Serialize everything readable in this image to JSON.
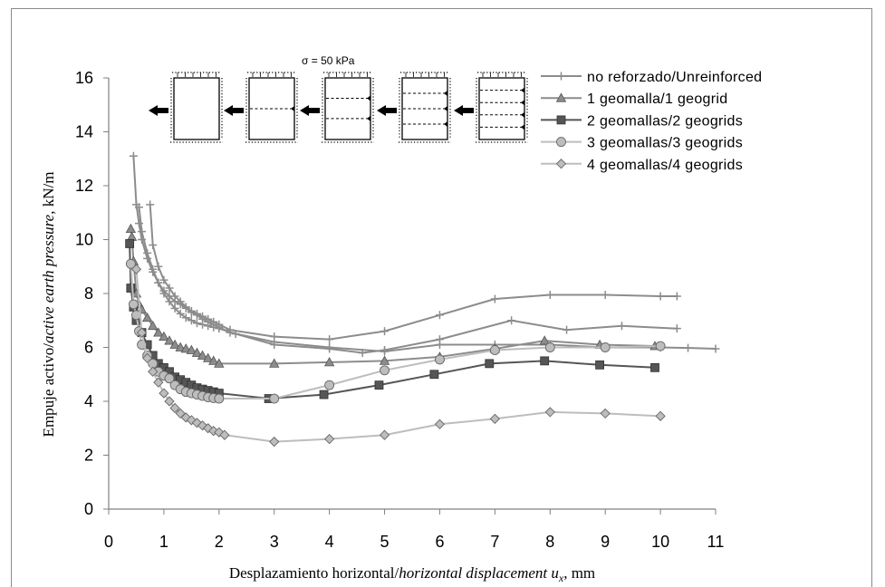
{
  "chart_data": {
    "type": "line",
    "xlabel_prefix": "Desplazamiento horizontal/",
    "xlabel_italic": "horizontal displacement",
    "xlabel_var": "u",
    "xlabel_sub": "x",
    "xlabel_unit": ", mm",
    "ylabel_prefix": "Empuje activo/",
    "ylabel_italic": "active earth pressure",
    "ylabel_unit": ", kN/m",
    "xlim": [
      0,
      11
    ],
    "ylim": [
      0,
      16
    ],
    "xticks": [
      "0",
      "1",
      "2",
      "3",
      "4",
      "5",
      "6",
      "7",
      "8",
      "9",
      "10",
      "11"
    ],
    "yticks": [
      "0",
      "2",
      "4",
      "6",
      "8",
      "10",
      "12",
      "14",
      "16"
    ],
    "grid": false,
    "legend_position": "top-right",
    "series": [
      {
        "name": "no reforzado/Unreinforced",
        "color": "#8c8c8c",
        "marker": "plus",
        "curves": [
          [
            [
              0.45,
              13.1
            ],
            [
              0.5,
              11.3
            ],
            [
              0.55,
              10.6
            ],
            [
              0.6,
              10.0
            ],
            [
              0.7,
              9.3
            ],
            [
              0.8,
              8.8
            ],
            [
              0.9,
              8.4
            ],
            [
              1.0,
              8.1
            ],
            [
              1.1,
              7.9
            ],
            [
              1.2,
              7.7
            ],
            [
              1.3,
              7.6
            ],
            [
              1.4,
              7.45
            ],
            [
              1.5,
              7.35
            ],
            [
              1.6,
              7.25
            ],
            [
              1.7,
              7.15
            ],
            [
              1.8,
              7.05
            ],
            [
              1.9,
              6.95
            ],
            [
              2.0,
              6.85
            ],
            [
              2.2,
              6.65
            ],
            [
              3.0,
              6.4
            ],
            [
              4.0,
              6.3
            ],
            [
              5.0,
              6.6
            ],
            [
              6.0,
              7.2
            ],
            [
              7.0,
              7.8
            ],
            [
              8.0,
              7.95
            ],
            [
              9.0,
              7.95
            ],
            [
              10.0,
              7.9
            ],
            [
              10.3,
              7.9
            ]
          ],
          [
            [
              0.75,
              11.3
            ],
            [
              0.8,
              9.8
            ],
            [
              0.9,
              9.0
            ],
            [
              1.0,
              8.5
            ],
            [
              1.1,
              8.2
            ],
            [
              1.2,
              7.9
            ],
            [
              1.3,
              7.7
            ],
            [
              1.4,
              7.5
            ],
            [
              1.5,
              7.3
            ],
            [
              1.6,
              7.2
            ],
            [
              1.7,
              7.05
            ],
            [
              1.8,
              6.95
            ],
            [
              1.9,
              6.85
            ],
            [
              2.0,
              6.75
            ],
            [
              2.2,
              6.55
            ],
            [
              3.0,
              6.2
            ],
            [
              4.0,
              6.0
            ],
            [
              5.0,
              5.85
            ],
            [
              6.0,
              6.1
            ],
            [
              7.0,
              6.1
            ],
            [
              8.0,
              6.1
            ],
            [
              9.0,
              6.0
            ],
            [
              10.0,
              6.0
            ],
            [
              10.5,
              5.98
            ],
            [
              11.0,
              5.95
            ]
          ],
          [
            [
              0.55,
              11.2
            ],
            [
              0.6,
              10.3
            ],
            [
              0.7,
              9.5
            ],
            [
              0.8,
              8.9
            ],
            [
              0.9,
              8.4
            ],
            [
              1.0,
              8.0
            ],
            [
              1.1,
              7.7
            ],
            [
              1.2,
              7.45
            ],
            [
              1.3,
              7.25
            ],
            [
              1.4,
              7.1
            ],
            [
              1.5,
              7.0
            ],
            [
              1.6,
              6.9
            ],
            [
              1.7,
              6.85
            ],
            [
              1.8,
              6.8
            ],
            [
              1.9,
              6.75
            ],
            [
              2.0,
              6.7
            ],
            [
              2.3,
              6.5
            ],
            [
              3.0,
              6.1
            ],
            [
              4.0,
              5.95
            ],
            [
              4.6,
              5.8
            ],
            [
              5.0,
              5.9
            ],
            [
              6.0,
              6.3
            ],
            [
              7.3,
              7.0
            ],
            [
              8.3,
              6.65
            ],
            [
              9.3,
              6.8
            ],
            [
              10.3,
              6.7
            ]
          ]
        ]
      },
      {
        "name": "1 geomalla/1 geogrid",
        "color": "#8c8c8c",
        "marker": "triangle",
        "curves": [
          [
            [
              0.4,
              10.4
            ],
            [
              0.42,
              10.1
            ],
            [
              0.45,
              9.2
            ],
            [
              0.5,
              8.0
            ],
            [
              0.55,
              7.6
            ],
            [
              0.6,
              7.4
            ],
            [
              0.7,
              7.1
            ],
            [
              0.8,
              6.8
            ],
            [
              0.9,
              6.55
            ],
            [
              1.0,
              6.4
            ],
            [
              1.1,
              6.25
            ],
            [
              1.2,
              6.1
            ],
            [
              1.3,
              6.0
            ],
            [
              1.4,
              5.95
            ],
            [
              1.5,
              5.9
            ],
            [
              1.6,
              5.8
            ],
            [
              1.7,
              5.7
            ],
            [
              1.8,
              5.6
            ],
            [
              1.9,
              5.5
            ],
            [
              2.0,
              5.4
            ],
            [
              3.0,
              5.4
            ],
            [
              4.0,
              5.45
            ],
            [
              5.0,
              5.5
            ],
            [
              6.0,
              5.65
            ],
            [
              7.0,
              5.95
            ],
            [
              7.9,
              6.25
            ],
            [
              8.9,
              6.1
            ],
            [
              9.9,
              6.05
            ]
          ]
        ]
      },
      {
        "name": "2 geomallas/2 geogrids",
        "color": "#555555",
        "marker": "square",
        "curves": [
          [
            [
              0.38,
              9.85
            ],
            [
              0.4,
              8.2
            ],
            [
              0.45,
              7.5
            ],
            [
              0.5,
              7.0
            ],
            [
              0.6,
              6.55
            ],
            [
              0.7,
              6.1
            ],
            [
              0.8,
              5.7
            ],
            [
              0.9,
              5.4
            ],
            [
              1.0,
              5.25
            ],
            [
              1.1,
              5.1
            ],
            [
              1.2,
              4.9
            ],
            [
              1.3,
              4.8
            ],
            [
              1.4,
              4.7
            ],
            [
              1.5,
              4.6
            ],
            [
              1.6,
              4.5
            ],
            [
              1.7,
              4.45
            ],
            [
              1.8,
              4.4
            ],
            [
              1.9,
              4.35
            ],
            [
              2.0,
              4.3
            ],
            [
              2.9,
              4.1
            ],
            [
              3.9,
              4.25
            ],
            [
              4.9,
              4.6
            ],
            [
              5.9,
              5.0
            ],
            [
              6.9,
              5.4
            ],
            [
              7.9,
              5.5
            ],
            [
              8.9,
              5.35
            ],
            [
              9.9,
              5.25
            ]
          ]
        ]
      },
      {
        "name": "3 geomallas/3 geogrids",
        "color": "#bdbdbd",
        "marker": "circle",
        "curves": [
          [
            [
              0.4,
              9.1
            ],
            [
              0.45,
              7.6
            ],
            [
              0.5,
              7.2
            ],
            [
              0.55,
              6.6
            ],
            [
              0.6,
              6.1
            ],
            [
              0.7,
              5.7
            ],
            [
              0.8,
              5.4
            ],
            [
              0.9,
              5.1
            ],
            [
              1.0,
              4.95
            ],
            [
              1.1,
              4.85
            ],
            [
              1.2,
              4.6
            ],
            [
              1.3,
              4.45
            ],
            [
              1.4,
              4.35
            ],
            [
              1.5,
              4.3
            ],
            [
              1.6,
              4.25
            ],
            [
              1.7,
              4.2
            ],
            [
              1.8,
              4.15
            ],
            [
              1.9,
              4.12
            ],
            [
              2.0,
              4.1
            ],
            [
              3.0,
              4.1
            ],
            [
              4.0,
              4.6
            ],
            [
              5.0,
              5.15
            ],
            [
              6.0,
              5.55
            ],
            [
              7.0,
              5.9
            ],
            [
              8.0,
              6.0
            ],
            [
              9.0,
              6.0
            ],
            [
              10.0,
              6.05
            ]
          ]
        ]
      },
      {
        "name": "4 geomallas/4 geogrids",
        "color": "#bdbdbd",
        "marker": "diamond",
        "curves": [
          [
            [
              0.5,
              8.9
            ],
            [
              0.6,
              6.55
            ],
            [
              0.7,
              5.6
            ],
            [
              0.8,
              5.1
            ],
            [
              0.9,
              4.7
            ],
            [
              1.0,
              4.3
            ],
            [
              1.1,
              4.0
            ],
            [
              1.2,
              3.75
            ],
            [
              1.3,
              3.55
            ],
            [
              1.4,
              3.4
            ],
            [
              1.5,
              3.3
            ],
            [
              1.6,
              3.2
            ],
            [
              1.7,
              3.1
            ],
            [
              1.8,
              3.0
            ],
            [
              1.9,
              2.9
            ],
            [
              2.0,
              2.85
            ],
            [
              2.1,
              2.75
            ],
            [
              3.0,
              2.5
            ],
            [
              4.0,
              2.6
            ],
            [
              5.0,
              2.75
            ],
            [
              6.0,
              3.15
            ],
            [
              7.0,
              3.35
            ],
            [
              8.0,
              3.6
            ],
            [
              9.0,
              3.55
            ],
            [
              10.0,
              3.45
            ]
          ]
        ]
      }
    ],
    "inset": {
      "sigma_label": "σ = 50 kPa",
      "panels": [
        0,
        1,
        2,
        3,
        4
      ]
    }
  }
}
